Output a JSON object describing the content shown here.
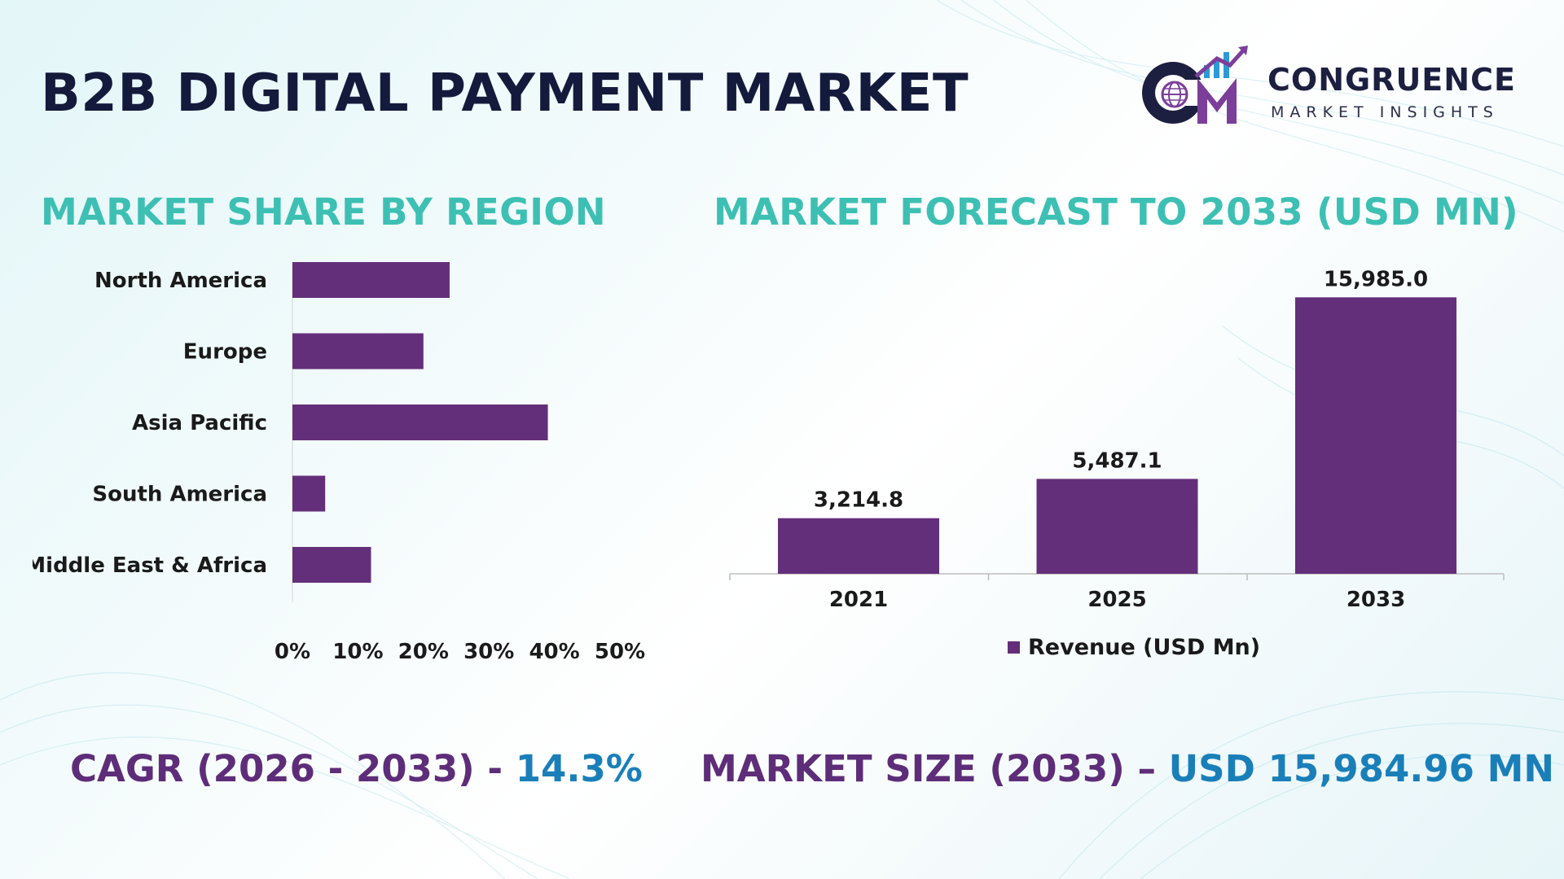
{
  "header": {
    "title": "B2B DIGITAL PAYMENT MARKET"
  },
  "logo": {
    "name": "CONGRUENCE",
    "tagline": "MARKET INSIGHTS",
    "icon": "congruence-cm-globe-logo"
  },
  "colors": {
    "bar": "#642f7a",
    "section_title": "#3dc0b3",
    "title": "#141a3c",
    "stat_label": "#5e2d79",
    "stat_value": "#1a7fb9"
  },
  "sections": {
    "region_title": "MARKET SHARE BY REGION",
    "forecast_title": "MARKET FORECAST TO 2033 (USD MN)"
  },
  "chart_data": [
    {
      "type": "bar",
      "orientation": "horizontal",
      "categories": [
        "North America",
        "Europe",
        "Asia Pacific",
        "South America",
        "Middle East & Africa"
      ],
      "values": [
        24,
        20,
        39,
        5,
        12
      ],
      "xlim": [
        0,
        50
      ],
      "ticks": [
        "0%",
        "10%",
        "20%",
        "30%",
        "40%",
        "50%"
      ],
      "grid": false,
      "legend": "none"
    },
    {
      "type": "bar",
      "orientation": "vertical",
      "categories": [
        "2021",
        "2025",
        "2033"
      ],
      "series": [
        {
          "name": "Revenue (USD Mn)",
          "values": [
            3214.8,
            5487.1,
            15985.0
          ],
          "labels": [
            "3,214.8",
            "5,487.1",
            "15,985.0"
          ]
        }
      ],
      "ylim": [
        0,
        16000
      ],
      "grid": false,
      "legend": "bottom"
    }
  ],
  "legend": {
    "label": "Revenue (USD Mn)"
  },
  "stats": {
    "cagr_label": "CAGR (2026 - 2033) - ",
    "cagr_value": "14.3%",
    "size_label": "MARKET SIZE (2033) – ",
    "size_value": "USD 15,984.96 MN"
  }
}
